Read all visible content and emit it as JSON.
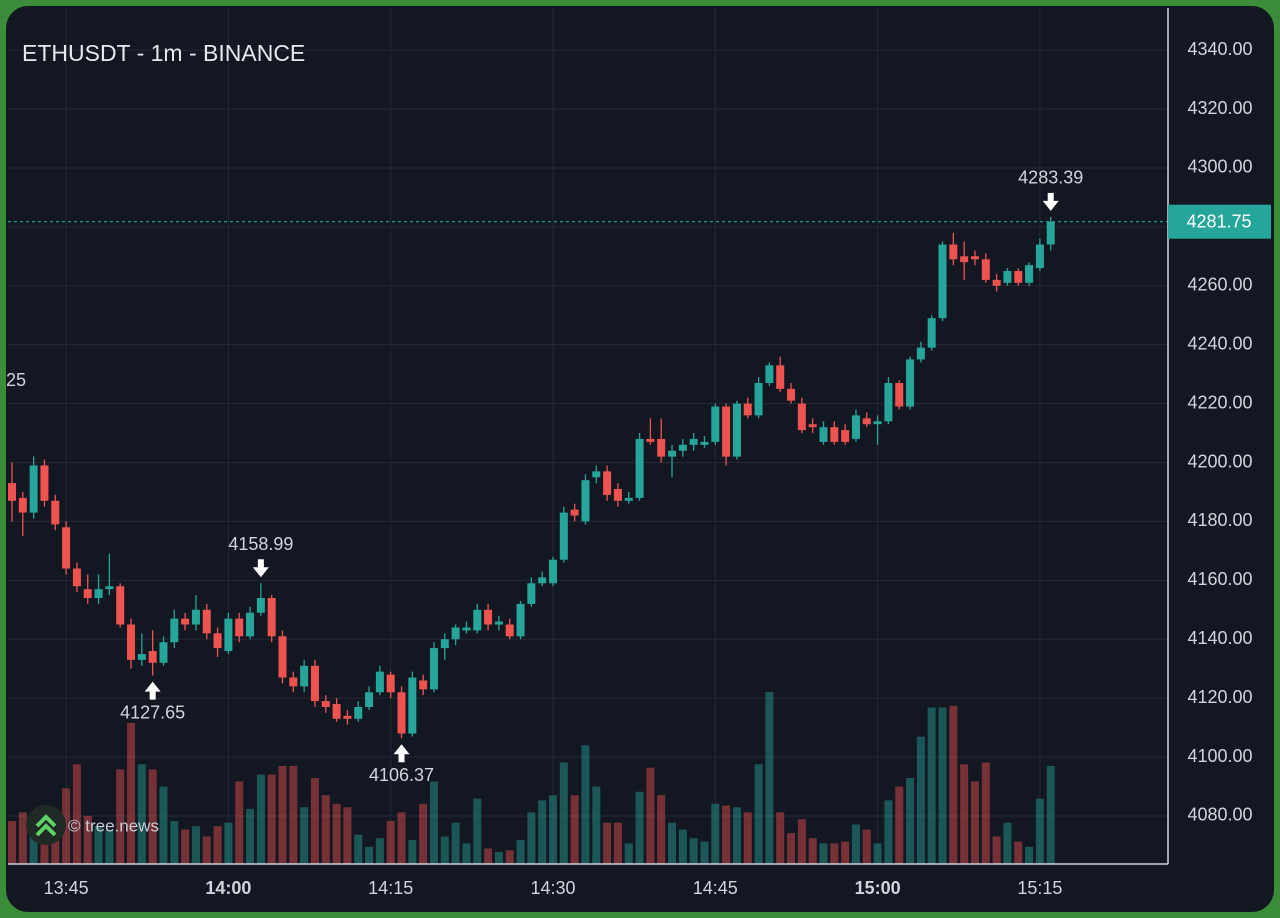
{
  "chart_data": {
    "type": "candlestick",
    "title": "ETHUSDT - 1m - BINANCE",
    "categories": [
      "13:40",
      "13:41",
      "13:42",
      "13:43",
      "13:44",
      "13:45",
      "13:46",
      "13:47",
      "13:48",
      "13:49",
      "13:50",
      "13:51",
      "13:52",
      "13:53",
      "13:54",
      "13:55",
      "13:56",
      "13:57",
      "13:58",
      "13:59",
      "14:00",
      "14:01",
      "14:02",
      "14:03",
      "14:04",
      "14:05",
      "14:06",
      "14:07",
      "14:08",
      "14:09",
      "14:10",
      "14:11",
      "14:12",
      "14:13",
      "14:14",
      "14:15",
      "14:16",
      "14:17",
      "14:18",
      "14:19",
      "14:20",
      "14:21",
      "14:22",
      "14:23",
      "14:24",
      "14:25",
      "14:26",
      "14:27",
      "14:28",
      "14:29",
      "14:30",
      "14:31",
      "14:32",
      "14:33",
      "14:34",
      "14:35",
      "14:36",
      "14:37",
      "14:38",
      "14:39",
      "14:40",
      "14:41",
      "14:42",
      "14:43",
      "14:44",
      "14:45",
      "14:46",
      "14:47",
      "14:48",
      "14:49",
      "14:50",
      "14:51",
      "14:52",
      "14:53",
      "14:54",
      "14:55",
      "14:56",
      "14:57",
      "14:58",
      "14:59",
      "15:00",
      "15:01",
      "15:02",
      "15:03",
      "15:04",
      "15:05",
      "15:06",
      "15:07",
      "15:08",
      "15:09",
      "15:10",
      "15:11",
      "15:12",
      "15:13",
      "15:14",
      "15:15",
      "15:16"
    ],
    "open": [
      4193,
      4188,
      4183,
      4199,
      4187,
      4178,
      4164,
      4157,
      4154,
      4157,
      4158,
      4145,
      4133,
      4136,
      4132,
      4139,
      4147,
      4145,
      4150,
      4142,
      4136,
      4147,
      4141,
      4149,
      4154,
      4141,
      4127,
      4124,
      4131,
      4119,
      4118,
      4114,
      4113,
      4117,
      4122,
      4128,
      4122,
      4108,
      4126,
      4123,
      4137,
      4140,
      4143,
      4143,
      4150,
      4145,
      4145,
      4141,
      4152,
      4159,
      4159,
      4167,
      4184,
      4180,
      4195,
      4197,
      4191,
      4187,
      4188,
      4208,
      4208,
      4202,
      4204,
      4206,
      4206,
      4207,
      4219,
      4202,
      4220,
      4216,
      4227,
      4233,
      4225,
      4220,
      4213,
      4207,
      4212,
      4211,
      4208,
      4215,
      4213,
      4214,
      4227,
      4219,
      4235,
      4239,
      4249,
      4274,
      4270,
      4270,
      4269,
      4262,
      4261,
      4265,
      4261,
      4266,
      4274
    ],
    "high": [
      4200,
      4190,
      4202,
      4201,
      4189,
      4180,
      4166,
      4162,
      4162,
      4169,
      4159,
      4147,
      4142,
      4143,
      4141,
      4150,
      4149,
      4155,
      4152,
      4144,
      4149,
      4149,
      4151,
      4158.99,
      4155,
      4143,
      4129,
      4133,
      4133,
      4121,
      4120,
      4116,
      4119,
      4124,
      4131,
      4129,
      4124,
      4129,
      4128,
      4139,
      4142,
      4145,
      4146,
      4152,
      4152,
      4148,
      4147,
      4153,
      4161,
      4163,
      4168,
      4185,
      4186,
      4196,
      4199,
      4199,
      4193,
      4190,
      4210,
      4215,
      4215,
      4206,
      4208,
      4210,
      4209,
      4220,
      4220,
      4221,
      4222,
      4229,
      4234,
      4236,
      4227,
      4222,
      4215,
      4214,
      4214,
      4213,
      4218,
      4217,
      4216,
      4229,
      4228,
      4236,
      4241,
      4250,
      4275,
      4278,
      4275,
      4272,
      4271,
      4264,
      4266,
      4266,
      4268,
      4276,
      4283.39
    ],
    "low": [
      4180,
      4175,
      4181,
      4185,
      4177,
      4162,
      4156,
      4152,
      4152,
      4155,
      4144,
      4130,
      4131,
      4127.65,
      4131,
      4137,
      4143,
      4143,
      4140,
      4134,
      4135,
      4139,
      4140,
      4148,
      4139,
      4125,
      4122,
      4122,
      4117,
      4115,
      4112,
      4111,
      4112,
      4116,
      4121,
      4120,
      4106.37,
      4107,
      4121,
      4122,
      4133,
      4138,
      4142,
      4142,
      4143,
      4143,
      4140,
      4140,
      4151,
      4158,
      4158,
      4166,
      4180,
      4179,
      4193,
      4187,
      4185,
      4186,
      4187,
      4206,
      4200,
      4195,
      4202,
      4204,
      4205,
      4206,
      4199,
      4201,
      4215,
      4215,
      4226,
      4224,
      4220,
      4210,
      4210,
      4206,
      4206,
      4206,
      4207,
      4212,
      4206,
      4213,
      4218,
      4218,
      4234,
      4238,
      4248,
      4267,
      4262,
      4267,
      4261,
      4258,
      4260,
      4260,
      4260,
      4265,
      4272
    ],
    "close": [
      4187,
      4183,
      4199,
      4187,
      4179,
      4164,
      4158,
      4154,
      4157,
      4158,
      4145,
      4133,
      4135,
      4132,
      4139,
      4147,
      4145,
      4150,
      4142,
      4137,
      4147,
      4141,
      4149,
      4154,
      4141,
      4127,
      4124,
      4131,
      4119,
      4117,
      4113,
      4113,
      4117,
      4122,
      4129,
      4122,
      4108,
      4127,
      4123,
      4137,
      4140,
      4144,
      4144,
      4150,
      4145,
      4146,
      4141,
      4152,
      4159,
      4161,
      4167,
      4183,
      4182,
      4194,
      4197,
      4189,
      4187,
      4188,
      4208,
      4207,
      4202,
      4204,
      4206,
      4208,
      4207,
      4219,
      4202,
      4220,
      4216,
      4227,
      4233,
      4225,
      4221,
      4211,
      4212,
      4212,
      4207,
      4207,
      4216,
      4213,
      4214,
      4227,
      4219,
      4235,
      4239,
      4249,
      4274,
      4269,
      4268,
      4269,
      4262,
      4260,
      4265,
      4261,
      4267,
      4274,
      4281.75
    ],
    "volume": [
      25,
      30,
      25,
      30,
      20,
      44,
      58,
      28,
      22,
      20,
      55,
      82,
      58,
      55,
      45,
      25,
      20,
      22,
      16,
      22,
      24,
      48,
      32,
      52,
      52,
      57,
      57,
      33,
      50,
      40,
      35,
      33,
      17,
      10,
      15,
      25,
      30,
      14,
      35,
      48,
      16,
      24,
      12,
      38,
      9,
      7,
      8,
      14,
      30,
      37,
      40,
      59,
      40,
      69,
      45,
      24,
      24,
      12,
      42,
      56,
      40,
      24,
      20,
      15,
      13,
      35,
      34,
      33,
      30,
      58,
      100,
      30,
      18,
      26,
      15,
      12,
      12,
      13,
      23,
      20,
      12,
      37,
      45,
      50,
      74,
      91,
      91,
      92,
      58,
      48,
      59,
      16,
      24,
      13,
      10,
      38,
      57
    ],
    "volume_lim": [
      0,
      100
    ],
    "up_color": "#26a69a",
    "down_color": "#ef5350",
    "ylim": [
      4063.7,
      4354.3
    ],
    "yticks": [
      {
        "value": 4080,
        "label": "4080.00"
      },
      {
        "value": 4100,
        "label": "4100.00"
      },
      {
        "value": 4120,
        "label": "4120.00"
      },
      {
        "value": 4140,
        "label": "4140.00"
      },
      {
        "value": 4160,
        "label": "4160.00"
      },
      {
        "value": 4180,
        "label": "4180.00"
      },
      {
        "value": 4200,
        "label": "4200.00"
      },
      {
        "value": 4220,
        "label": "4220.00"
      },
      {
        "value": 4240,
        "label": "4240.00"
      },
      {
        "value": 4260,
        "label": "4260.00"
      },
      {
        "value": 4280,
        "label": "4280.00"
      },
      {
        "value": 4300,
        "label": "4300.00"
      },
      {
        "value": 4320,
        "label": "4320.00"
      },
      {
        "value": 4340,
        "label": "4340.00"
      }
    ],
    "xticks": [
      "13:45",
      "14:00",
      "14:15",
      "14:30",
      "14:45",
      "15:00",
      "15:15"
    ],
    "grid": true,
    "last_price": 4281.75,
    "annotations": [
      {
        "x": "14:03",
        "value": 4158.99,
        "position": "above"
      },
      {
        "x": "13:53",
        "value": 4127.65,
        "position": "below"
      },
      {
        "x": "14:16",
        "value": 4106.37,
        "position": "below"
      },
      {
        "x": "15:16",
        "value": 4283.39,
        "position": "above"
      }
    ],
    "edge_label": "25",
    "watermark": "© tree.news"
  }
}
